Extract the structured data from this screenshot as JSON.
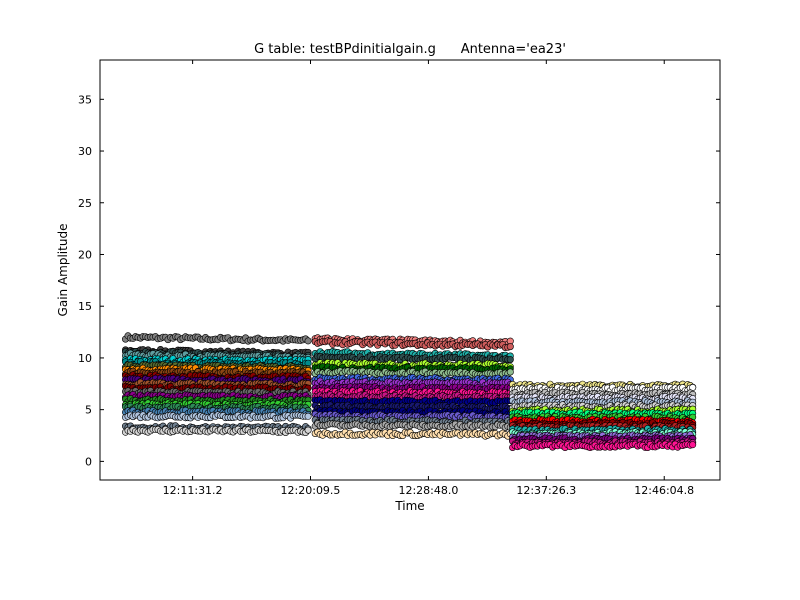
{
  "chart_data": {
    "type": "scatter",
    "title": "G table: testBPdinitialgain.g      Antenna='ea23'",
    "xlabel": "Time",
    "ylabel": "Gain Amplitude",
    "x_tick_labels": [
      "12:11:31.2",
      "12:20:09.5",
      "12:28:48.0",
      "12:37:26.3",
      "12:46:04.8"
    ],
    "x_tick_seconds": [
      43891.2,
      44409.5,
      44928.0,
      45446.3,
      45964.8
    ],
    "xlim_seconds": [
      43484.0,
      46210.0
    ],
    "ylim": [
      -1.8,
      38.8
    ],
    "y_ticks": [
      0,
      5,
      10,
      15,
      20,
      25,
      30,
      35
    ],
    "grid": false,
    "legend": "none",
    "scans": [
      {
        "x_start_seconds": 43596.0,
        "x_end_seconds": 44400.0,
        "levels": [
          12.0,
          10.7,
          10.5,
          10.3,
          9.8,
          9.5,
          9.2,
          8.9,
          8.6,
          8.2,
          7.9,
          7.5,
          7.1,
          6.7,
          6.3,
          5.9,
          5.5,
          5.2,
          4.8,
          4.4,
          3.3,
          3.0
        ],
        "colors": [
          "#808080",
          "#404040",
          "#2f4f4f",
          "#5f9ea0",
          "#00ced1",
          "#008b8b",
          "#556b2f",
          "#ff8c00",
          "#8b4513",
          "#8b0000",
          "#4b0082",
          "#a0522d",
          "#800000",
          "#696969",
          "#8b008b",
          "#228b22",
          "#32cd32",
          "#2e8b57",
          "#4682b4",
          "#b0c4de",
          "#708090",
          "#d3d3d3"
        ]
      },
      {
        "x_start_seconds": 44430.0,
        "x_end_seconds": 45289.0,
        "levels": [
          11.8,
          11.5,
          10.5,
          10.0,
          9.4,
          9.0,
          8.6,
          8.0,
          7.6,
          7.1,
          6.7,
          6.3,
          5.8,
          5.3,
          4.8,
          4.4,
          3.9,
          3.5,
          2.7
        ],
        "colors": [
          "#f08080",
          "#cd5c5c",
          "#20b2aa",
          "#2f4f4f",
          "#adff2f",
          "#006400",
          "#8fbc8f",
          "#4169e1",
          "#9932cc",
          "#8b008b",
          "#ff1493",
          "#c71585",
          "#00008b",
          "#191970",
          "#000080",
          "#6a5acd",
          "#708090",
          "#a9a9a9",
          "#ffdead"
        ]
      },
      {
        "x_start_seconds": 45298.0,
        "x_end_seconds": 46090.0,
        "levels": [
          7.3,
          7.0,
          6.5,
          6.1,
          5.7,
          5.3,
          4.9,
          4.6,
          4.2,
          3.9,
          3.6,
          3.3,
          3.0,
          2.7,
          2.4,
          2.1,
          1.8,
          1.5
        ],
        "colors": [
          "#f0e68c",
          "#ffffff",
          "#c0c0c0",
          "#e6e6fa",
          "#b0c4de",
          "#d3d3d3",
          "#adff2f",
          "#00ff7f",
          "#32cd32",
          "#ff0000",
          "#8b0000",
          "#b22222",
          "#20b2aa",
          "#7fffd4",
          "#9370db",
          "#800080",
          "#c71585",
          "#ff1493"
        ]
      }
    ]
  }
}
